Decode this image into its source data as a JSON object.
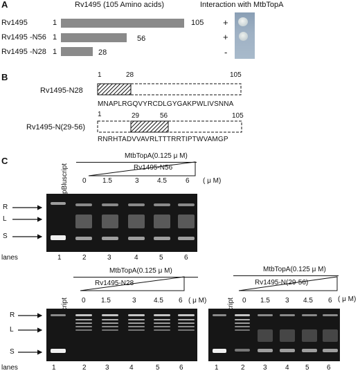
{
  "panelA": {
    "letter": "A",
    "header": "Rv1495 (105 Amino acids)",
    "interaction_header": "Interaction with MtbTopA",
    "constructs": [
      {
        "label": "Rv1495",
        "start": "1",
        "end": "105",
        "length": 105,
        "interaction": "+"
      },
      {
        "label": "Rv1495 -N56",
        "start": "1",
        "end": "56",
        "length": 56,
        "interaction": "+"
      },
      {
        "label": "Rv1495 -N28",
        "start": "1",
        "end": "28",
        "length": 28,
        "interaction": "-"
      }
    ]
  },
  "panelB": {
    "letter": "B",
    "n28": {
      "label": "Rv1495-N28",
      "num_start": "1",
      "num_mid": "28",
      "num_end": "105",
      "sequence": "MNAPLRGQVYRCDLGYGAKPWLIVSNNA"
    },
    "n2956": {
      "label": "Rv1495-N(29-56)",
      "num_start": "1",
      "num_a": "29",
      "num_b": "56",
      "num_end": "105",
      "sequence": "RNRHTADVVAVRLTTTRRTIPTWVAMGP"
    }
  },
  "panelC": {
    "letter": "C",
    "control_lane": "pBluscript",
    "topA": "MtbTopA(0.125 μ M)",
    "unit": "( μ M)",
    "concentrations": [
      "0",
      "1.5",
      "3",
      "4.5",
      "6"
    ],
    "lanes_label": "lanes",
    "lane_numbers": [
      "1",
      "2",
      "3",
      "4",
      "5",
      "6"
    ],
    "markers": [
      "R",
      "L",
      "S"
    ],
    "gels": [
      {
        "protein": "Rv1495-N56"
      },
      {
        "protein": "Rv1495-N28"
      },
      {
        "protein": "Rv1495-N(29-56)"
      }
    ]
  }
}
